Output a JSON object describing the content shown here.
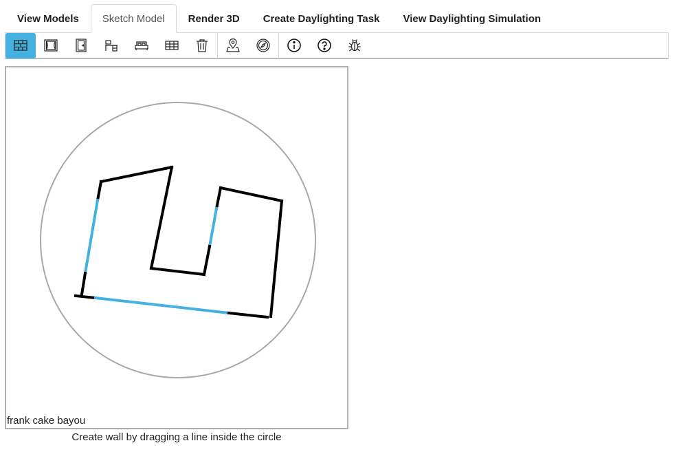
{
  "tabs": [
    {
      "label": "View Models"
    },
    {
      "label": "Sketch Model",
      "active": true
    },
    {
      "label": "Render 3D"
    },
    {
      "label": "Create Daylighting Task"
    },
    {
      "label": "View Daylighting Simulation"
    }
  ],
  "toolbar": {
    "tools": [
      {
        "icon": "wall-icon",
        "active": true
      },
      {
        "icon": "window-icon"
      },
      {
        "icon": "door-icon"
      },
      {
        "icon": "desk-icon"
      },
      {
        "icon": "bed-icon"
      },
      {
        "icon": "table-icon"
      },
      {
        "icon": "trash-icon"
      },
      {
        "icon": "location-icon"
      },
      {
        "icon": "compass-icon"
      },
      {
        "icon": "info-icon"
      },
      {
        "icon": "help-icon"
      },
      {
        "icon": "bug-icon"
      }
    ]
  },
  "canvas": {
    "model_name": "frank cake bayou",
    "wall_color": "#000000",
    "window_color": "#45b1e0",
    "circle_color": "#a8a8a8"
  },
  "hint": "Create wall by dragging a line inside the circle",
  "colors": {
    "accent": "#45b1e0",
    "border": "#d8d8d8"
  }
}
